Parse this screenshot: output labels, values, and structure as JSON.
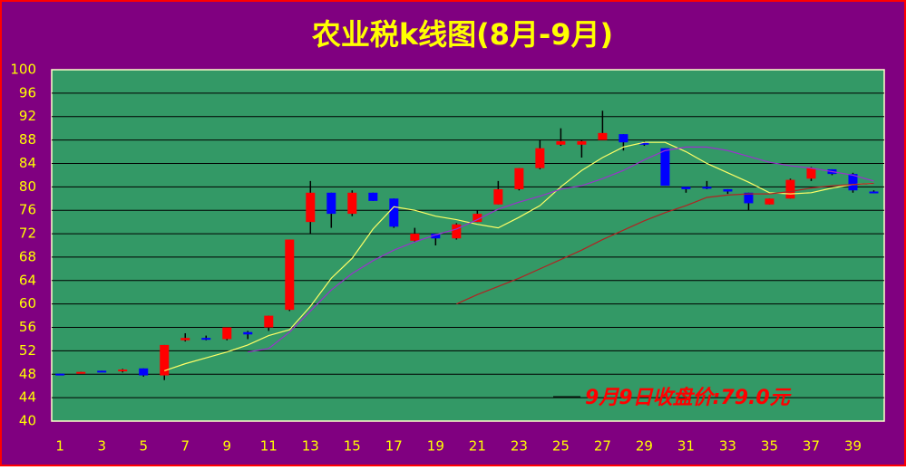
{
  "chart_data": {
    "type": "candlestick",
    "title": "农业税k线图(8月-9月)",
    "annotation": "9月9日收盘价:79.0元",
    "x": [
      1,
      2,
      3,
      4,
      5,
      6,
      7,
      8,
      9,
      10,
      11,
      12,
      13,
      14,
      15,
      16,
      17,
      18,
      19,
      20,
      21,
      22,
      23,
      24,
      25,
      26,
      27,
      28,
      29,
      30,
      31,
      32,
      33,
      34,
      35,
      36,
      37,
      38,
      39,
      40
    ],
    "open": [
      48.1,
      48.2,
      48.6,
      48.5,
      49,
      47.8,
      53.8,
      54.2,
      54,
      55.2,
      56,
      59,
      74,
      79,
      75.4,
      79,
      78,
      70.8,
      72,
      71.2,
      74,
      77,
      79.6,
      83.2,
      87.2,
      87.2,
      88,
      89,
      87.6,
      86.6,
      80,
      80,
      79.6,
      79,
      77,
      78,
      81.4,
      83,
      82.2,
      79.2
    ],
    "high": [
      48.1,
      48.4,
      48.6,
      48.9,
      49,
      53,
      55,
      54.6,
      56,
      55.4,
      58,
      71,
      81,
      79,
      79.4,
      79,
      78,
      73,
      72,
      73.8,
      76,
      81,
      83.2,
      88,
      90,
      88,
      93,
      89,
      87.8,
      86.6,
      80,
      81,
      79.6,
      79,
      78,
      81.4,
      83.4,
      83,
      82.4,
      79.4
    ],
    "low": [
      48,
      48.2,
      48.4,
      48.3,
      47.6,
      47,
      53.6,
      53.8,
      53.8,
      54,
      55.4,
      58.8,
      72,
      73,
      75,
      77.6,
      73,
      70.6,
      70,
      71,
      74,
      77,
      79.4,
      83,
      87,
      85,
      88,
      86.2,
      87,
      80.2,
      79,
      79.6,
      78.8,
      76,
      77,
      78,
      81,
      82,
      79,
      79
    ],
    "close": [
      48,
      48.4,
      48.4,
      48.8,
      47.8,
      53,
      54.2,
      54,
      56,
      54.8,
      58,
      71,
      79,
      75.4,
      79,
      77.6,
      73.2,
      72,
      71.2,
      73.6,
      75.4,
      79.6,
      83.2,
      86.6,
      87.8,
      87.8,
      89.2,
      87.6,
      87.2,
      80.2,
      79.6,
      79.8,
      79.2,
      77.2,
      78,
      81.2,
      83.2,
      82.2,
      79.4,
      79
    ],
    "up_color": "#ff0000",
    "down_color": "#0000ff",
    "lines": [
      {
        "color": "#ffff66",
        "values": [
          null,
          null,
          null,
          null,
          null,
          48.6,
          49.8,
          50.8,
          51.8,
          53,
          54.6,
          55.6,
          59.6,
          64.4,
          67.8,
          72.8,
          76.6,
          76,
          75,
          74.4,
          73.6,
          73,
          74.8,
          76.8,
          80,
          82.8,
          85,
          86.8,
          87.6,
          87.6,
          86,
          84,
          82.4,
          80.8,
          79,
          78.8,
          79,
          79.8,
          80.4,
          80.6
        ]
      },
      {
        "color": "#9933cc",
        "values": [
          null,
          null,
          null,
          null,
          null,
          null,
          null,
          null,
          null,
          51.8,
          52.4,
          55.2,
          58.8,
          62.4,
          65.2,
          67.4,
          69.2,
          70.6,
          71.8,
          72.8,
          74.4,
          76.2,
          77.4,
          78.4,
          79.6,
          80.2,
          81.4,
          82.8,
          84.6,
          86.2,
          86.8,
          86.8,
          86.2,
          85.2,
          84.2,
          83.6,
          83.2,
          82.6,
          82,
          81
        ]
      },
      {
        "color": "#b22222",
        "values": [
          null,
          null,
          null,
          null,
          null,
          null,
          null,
          null,
          null,
          null,
          null,
          null,
          null,
          null,
          null,
          null,
          null,
          null,
          null,
          60,
          61.6,
          63,
          64.4,
          66,
          67.6,
          69.2,
          71,
          72.6,
          74.2,
          75.6,
          76.8,
          78.2,
          78.6,
          78.8,
          78.8,
          79.2,
          79.8,
          80.2,
          80.4,
          80.6
        ]
      }
    ],
    "xlim": [
      0.6,
      40.5
    ],
    "xticks": [
      1,
      3,
      5,
      7,
      9,
      11,
      13,
      15,
      17,
      19,
      21,
      23,
      25,
      27,
      29,
      31,
      33,
      35,
      37,
      39
    ],
    "ylim": [
      40,
      100
    ],
    "yticks": [
      40,
      44,
      48,
      52,
      56,
      60,
      64,
      68,
      72,
      76,
      80,
      84,
      88,
      92,
      96,
      100
    ],
    "grid": true
  }
}
